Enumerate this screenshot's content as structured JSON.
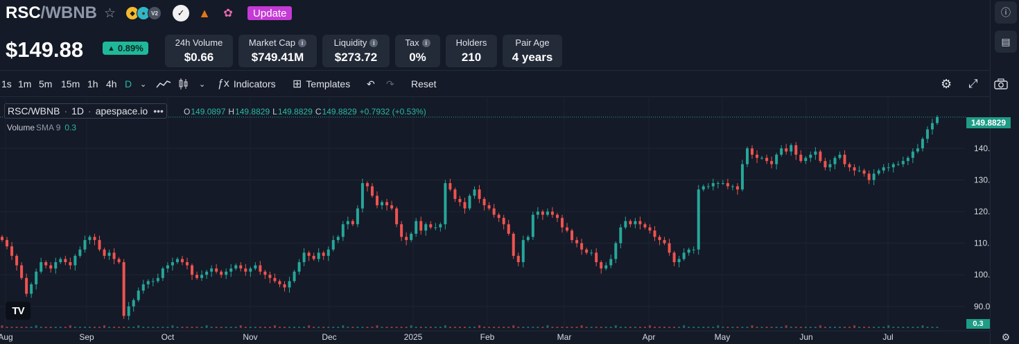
{
  "header": {
    "pair_base": "RSC",
    "pair_sep": "/",
    "pair_quote": "WBNB",
    "dex_version_badge": "V2",
    "update_label": "Update",
    "price": "$149.88",
    "change": "0.89%",
    "stats": [
      {
        "label": "24h Volume",
        "value": "$0.66",
        "info": false
      },
      {
        "label": "Market Cap",
        "value": "$749.41M",
        "info": true
      },
      {
        "label": "Liquidity",
        "value": "$273.72",
        "info": true
      },
      {
        "label": "Tax",
        "value": "0%",
        "info": true
      },
      {
        "label": "Holders",
        "value": "210",
        "info": false
      },
      {
        "label": "Pair Age",
        "value": "4 years",
        "info": false
      }
    ]
  },
  "toolbar": {
    "intervals": [
      "1s",
      "1m",
      "5m",
      "15m",
      "1h",
      "4h",
      "D"
    ],
    "active_interval": "D",
    "indicators_label": "Indicators",
    "templates_label": "Templates",
    "reset_label": "Reset"
  },
  "chart_legend": {
    "symbol": "RSC/WBNB",
    "interval": "1D",
    "source": "apespace.io",
    "open_label": "O",
    "open": "149.0897",
    "high_label": "H",
    "high": "149.8829",
    "low_label": "L",
    "low": "149.8829",
    "close_label": "C",
    "close": "149.8829",
    "change": "+0.7932 (+0.53%)",
    "volume_label": "Volume",
    "volume_sma": "SMA 9",
    "volume_value": "0.3"
  },
  "colors": {
    "up": "#26a69a",
    "down": "#ef5350",
    "accent": "#2ab8a4",
    "update": "#c53ad6"
  },
  "chart_data": {
    "type": "candlestick",
    "y_ticks": [
      "140.0000",
      "130.0000",
      "120.0000",
      "110.0000",
      "100.0000",
      "90.0000"
    ],
    "y_tick_values": [
      140,
      130,
      120,
      110,
      100,
      90
    ],
    "ylim": [
      82.5,
      156
    ],
    "x_labels": [
      "Aug",
      "Sep",
      "Oct",
      "Nov",
      "Dec",
      "2025",
      "Feb",
      "Mar",
      "Apr",
      "May",
      "Jun",
      "Jul"
    ],
    "last_price_label": "149.8829",
    "last_price": 149.8829,
    "volume_label": "0.3",
    "closes": [
      111,
      109,
      106,
      103,
      99,
      94,
      97,
      101,
      104,
      103,
      102,
      104,
      105,
      104,
      103,
      106,
      108,
      111,
      112,
      111,
      108,
      106,
      107,
      105,
      104,
      87,
      90,
      92,
      95,
      97,
      98,
      98,
      99,
      102,
      103,
      104,
      105,
      104,
      103,
      100,
      99,
      100,
      101,
      102,
      101,
      100,
      101,
      102,
      103,
      102,
      101,
      102,
      103,
      101,
      100,
      99,
      98,
      97,
      96,
      98,
      101,
      104,
      107,
      106,
      105,
      107,
      106,
      108,
      111,
      112,
      116,
      117,
      116,
      121,
      129,
      128,
      125,
      122,
      123,
      122,
      121,
      116,
      112,
      111,
      113,
      117,
      114,
      116,
      115,
      115,
      116,
      129,
      127,
      124,
      123,
      121,
      125,
      127,
      124,
      122,
      121,
      119,
      118,
      116,
      113,
      106,
      104,
      111,
      112,
      119,
      120,
      119,
      120,
      119,
      118,
      115,
      114,
      111,
      110,
      108,
      107,
      107,
      104,
      102,
      103,
      105,
      110,
      115,
      117,
      116,
      117,
      116,
      115,
      114,
      112,
      111,
      110,
      107,
      104,
      105,
      107,
      108,
      108,
      127,
      128,
      128,
      129,
      129,
      129,
      128,
      128,
      127,
      135,
      140,
      138,
      137,
      137,
      136,
      135,
      138,
      140,
      139,
      141,
      138,
      136,
      137,
      138,
      139,
      136,
      134,
      135,
      137,
      138,
      135,
      134,
      133,
      133,
      132,
      130,
      132,
      133,
      134,
      134,
      135,
      135,
      136,
      137,
      139,
      140,
      143,
      146,
      148,
      149.88
    ]
  }
}
